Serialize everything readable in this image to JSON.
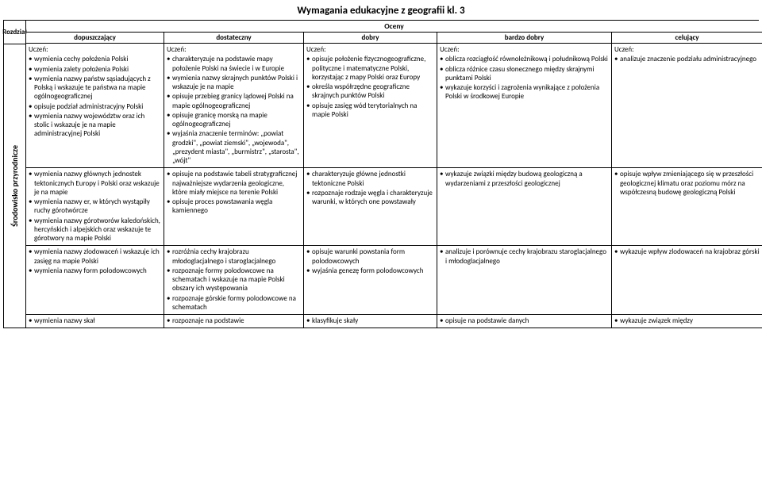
{
  "title": "Wymagania edukacyjne z geografii kl. 3",
  "sidebar": {
    "chapter_label": "Rozdział",
    "section_label": "Środowisko przyrodnicze"
  },
  "headers": {
    "oceny": "Oceny",
    "cols": [
      "dopuszczający",
      "dostateczny",
      "dobry",
      "bardzo dobry",
      "celujący"
    ]
  },
  "rows": [
    {
      "c1_lead": "Uczeń:",
      "c1": [
        "wymienia cechy położenia Polski",
        "wymienia zalety położenia Polski",
        "wymienia nazwy państw sąsiadujących z Polską i wskazuje te państwa na mapie ogólnogeograficznej",
        "opisuje podział administracyjny Polski",
        "wymienia nazwy województw oraz ich stolic i wskazuje je na mapie administracyjnej Polski"
      ],
      "c2_lead": "Uczeń:",
      "c2": [
        "charakteryzuje na podstawie mapy położenie Polski na świecie i w Europie",
        "wymienia nazwy skrajnych punktów Polski i wskazuje je na mapie",
        "opisuje przebieg granicy lądowej Polski na mapie ogólnogeograficznej",
        "opisuje granicę morską na mapie ogólnogeograficznej",
        "wyjaśnia znaczenie terminów: „powiat grodzki\", „powiat ziemski\", „wojewoda\", „prezydent miasta\", „burmistrz\", „starosta\", „wójt\""
      ],
      "c3_lead": "Uczeń:",
      "c3": [
        "opisuje położenie fizycznogeograficzne, polityczne i matematyczne Polski, korzystając z mapy Polski oraz Europy",
        "określa współrzędne geograficzne skrajnych punktów Polski",
        "opisuje zasięg wód terytorialnych na mapie Polski"
      ],
      "c4_lead": "Uczeń:",
      "c4": [
        "oblicza rozciągłość równoleżnikową i południkową Polski",
        "oblicza różnice czasu słonecznego między skrajnymi punktami Polski",
        "wykazuje korzyści i zagrożenia wynikające z położenia Polski w środkowej Europie"
      ],
      "c5_lead": "Uczeń:",
      "c5": [
        "analizuje znaczenie podziału administracyjnego"
      ]
    },
    {
      "c1": [
        "wymienia nazwy głównych jednostek tektonicznych Europy i Polski oraz wskazuje je na mapie",
        "wymienia nazwy er, w których wystąpiły ruchy górotwórcze",
        "wymienia nazwy górotworów kaledońskich, hercyńskich i alpejskich oraz wskazuje te górotwory na mapie Polski"
      ],
      "c2": [
        "opisuje na podstawie tabeli stratygraficznej najważniejsze wydarzenia geologiczne, które miały miejsce na terenie Polski",
        "opisuje proces powstawania węgla kamiennego"
      ],
      "c3": [
        "charakteryzuje główne jednostki tektoniczne Polski",
        "rozpoznaje rodzaje węgla i charakteryzuje warunki, w których one powstawały"
      ],
      "c4": [
        "wykazuje związki między budową geologiczną a wydarzeniami z przeszłości geologicznej"
      ],
      "c5": [
        "opisuje wpływ zmieniającego się w przeszłości geologicznej klimatu oraz poziomu mórz na współczesną budowę geologiczną Polski"
      ]
    },
    {
      "c1": [
        "wymienia nazwy zlodowaceń i wskazuje ich zasięg na mapie Polski",
        "wymienia nazwy form polodowcowych"
      ],
      "c2": [
        "rozróżnia cechy krajobrazu młodoglacjalnego i staroglacjalnego",
        "rozpoznaje formy polodowcowe na schematach i wskazuje na mapie Polski obszary ich występowania",
        "rozpoznaje górskie formy polodowcowe na schematach"
      ],
      "c3": [
        "opisuje warunki powstania form polodowcowych",
        "wyjaśnia genezę form polodowcowych"
      ],
      "c4": [
        "analizuje i porównuje cechy krajobrazu staroglacjalnego i młodoglacjalnego"
      ],
      "c5": [
        "wykazuje wpływ zlodowaceń na krajobraz górski"
      ]
    },
    {
      "c1": [
        "wymienia nazwy skał"
      ],
      "c2": [
        "rozpoznaje na podstawie"
      ],
      "c3": [
        "klasyfikuje skały"
      ],
      "c4": [
        "opisuje na podstawie danych"
      ],
      "c5": [
        "wykazuje związek między"
      ]
    }
  ]
}
